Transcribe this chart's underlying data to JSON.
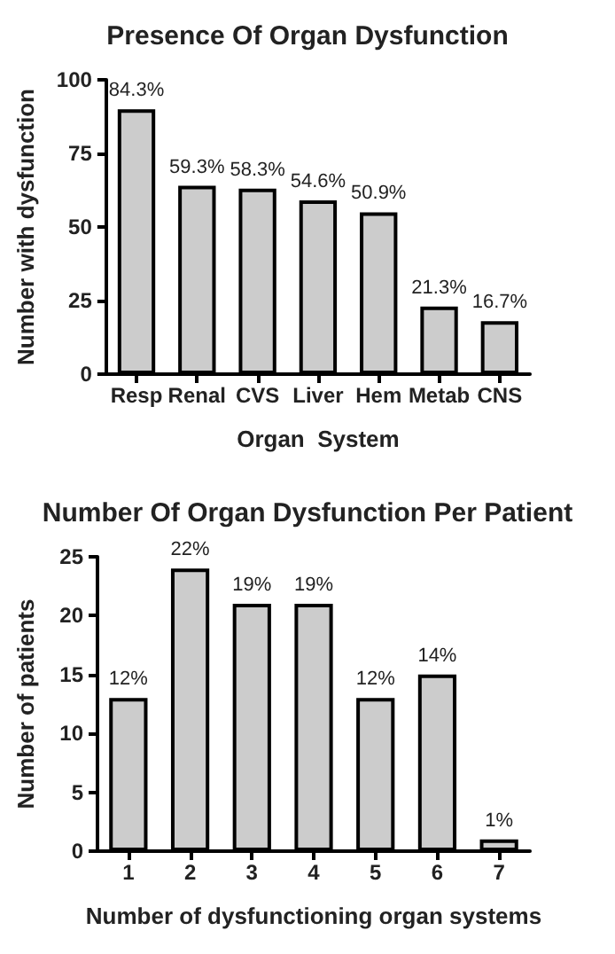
{
  "chart_data": [
    {
      "type": "bar",
      "title": "Presence Of Organ Dysfunction",
      "xlabel": "Organ  System",
      "ylabel": "Number with dysfunction",
      "categories": [
        "Resp",
        "Renal",
        "CVS",
        "Liver",
        "Hem",
        "Metab",
        "CNS"
      ],
      "values": [
        90,
        64,
        63,
        59,
        55,
        23,
        18
      ],
      "annotations": [
        {
          "text": "84.3%",
          "x": "Resp",
          "y": 90
        },
        {
          "text": "59.3%",
          "x": "Renal",
          "y": 64
        },
        {
          "text": "58.3%",
          "x": "CVS",
          "y": 63
        },
        {
          "text": "54.6%",
          "x": "Liver",
          "y": 59
        },
        {
          "text": "50.9%",
          "x": "Hem",
          "y": 55
        },
        {
          "text": "21.3%",
          "x": "Metab",
          "y": 23
        },
        {
          "text": "16.7%",
          "x": "CNS",
          "y": 18
        }
      ],
      "color": "#cccccc",
      "ylim": [
        0,
        100
      ],
      "yticks": [
        0,
        25,
        50,
        75,
        100
      ],
      "grid": false
    },
    {
      "type": "bar",
      "title": "Number Of Organ Dysfunction Per Patient",
      "xlabel": "Number of dysfunctioning organ systems",
      "ylabel": "Number of patients",
      "categories": [
        "1",
        "2",
        "3",
        "4",
        "5",
        "6",
        "7"
      ],
      "values": [
        13,
        24,
        21,
        21,
        13,
        15,
        1
      ],
      "annotations": [
        {
          "text": "12%",
          "x": "1",
          "y": 13
        },
        {
          "text": "22%",
          "x": "2",
          "y": 24
        },
        {
          "text": "19%",
          "x": "3",
          "y": 21
        },
        {
          "text": "19%",
          "x": "4",
          "y": 21
        },
        {
          "text": "12%",
          "x": "5",
          "y": 13
        },
        {
          "text": "14%",
          "x": "6",
          "y": 15
        },
        {
          "text": "1%",
          "x": "7",
          "y": 1
        }
      ],
      "color": "#cccccc",
      "ylim": [
        0,
        25
      ],
      "yticks": [
        0,
        5,
        10,
        15,
        20,
        25
      ],
      "grid": false
    }
  ]
}
